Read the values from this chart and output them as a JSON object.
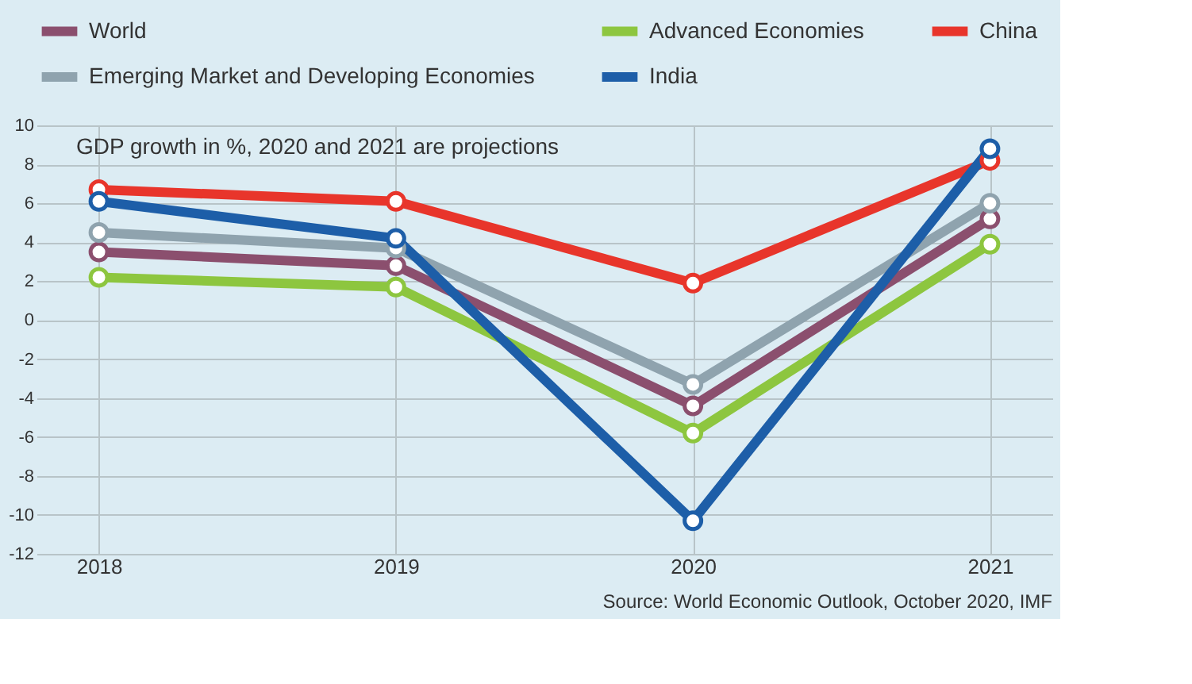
{
  "chart_data": {
    "type": "line",
    "categories": [
      "2018",
      "2019",
      "2020",
      "2021"
    ],
    "series": [
      {
        "name": "World",
        "color": "#8b4f6e",
        "values": [
          3.5,
          2.8,
          -4.4,
          5.2
        ]
      },
      {
        "name": "Advanced Economies",
        "color": "#8dc63f",
        "values": [
          2.2,
          1.7,
          -5.8,
          3.9
        ]
      },
      {
        "name": "China",
        "color": "#e8352b",
        "values": [
          6.7,
          6.1,
          1.9,
          8.2
        ]
      },
      {
        "name": "Emerging Market and Developing Economies",
        "color": "#8fa3ae",
        "values": [
          4.5,
          3.7,
          -3.3,
          6.0
        ]
      },
      {
        "name": "India",
        "color": "#1d5ea8",
        "values": [
          6.1,
          4.2,
          -10.3,
          8.8
        ]
      }
    ],
    "ylim": [
      -12,
      10
    ],
    "yticks": [
      -12,
      -10,
      -8,
      -6,
      -4,
      -2,
      0,
      2,
      4,
      6,
      8,
      10
    ],
    "grid": true,
    "legend": "top",
    "marker": "circle",
    "line_style": "solid",
    "annotations": [
      "GDP growth in %, 2020 and 2021 are projections",
      "Source: World Economic Outlook, October 2020, IMF"
    ]
  }
}
